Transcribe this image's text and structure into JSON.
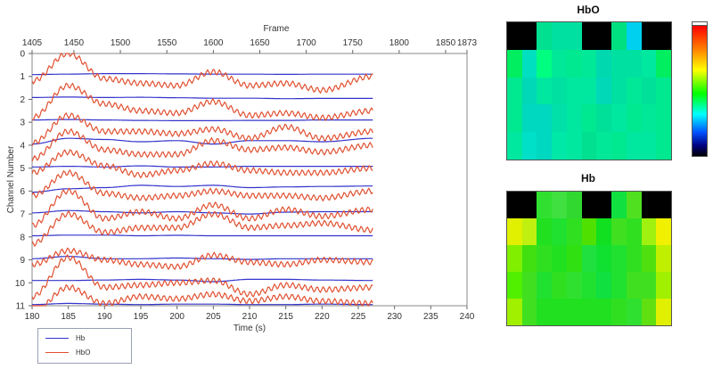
{
  "chart_data": {
    "type": "line",
    "top_axis": {
      "label": "Frame",
      "ticks": [
        "1405",
        "1450",
        "1500",
        "1550",
        "1600",
        "1650",
        "1700",
        "1750",
        "1800",
        "1850",
        "1873"
      ],
      "range": [
        1405,
        1873
      ]
    },
    "x_axis": {
      "label": "Time (s)",
      "ticks": [
        180,
        185,
        190,
        195,
        200,
        205,
        210,
        215,
        220,
        225,
        230,
        235,
        240
      ],
      "range": [
        180,
        240
      ]
    },
    "y_axis": {
      "label": "Channel Number",
      "ticks": [
        0,
        1,
        2,
        3,
        4,
        5,
        6,
        7,
        8,
        9,
        10,
        11
      ],
      "range": [
        0,
        11
      ]
    },
    "grid": false,
    "legend_position": "bottom-left",
    "data_end_time": 227,
    "series": [
      {
        "name": "Hb",
        "color": "#3333cc",
        "channels": [
          {
            "channel": 1,
            "values": [
              0.92,
              0.9,
              0.88,
              0.88,
              0.89,
              0.9,
              0.9,
              0.91,
              0.9,
              0.9
            ]
          },
          {
            "channel": 2,
            "values": [
              1.92,
              1.9,
              1.92,
              1.91,
              1.93,
              1.95,
              1.95,
              1.97,
              1.96,
              1.96
            ]
          },
          {
            "channel": 3,
            "values": [
              2.9,
              2.88,
              2.9,
              2.92,
              2.93,
              2.93,
              2.92,
              2.92,
              2.9,
              2.9
            ]
          },
          {
            "channel": 4,
            "values": [
              3.95,
              3.7,
              3.75,
              3.85,
              3.8,
              3.95,
              3.8,
              3.8,
              3.85,
              3.7
            ]
          },
          {
            "channel": 5,
            "values": [
              4.95,
              4.92,
              4.95,
              4.9,
              4.95,
              4.95,
              4.92,
              4.92,
              4.92,
              4.92
            ]
          },
          {
            "channel": 6,
            "values": [
              6.05,
              5.9,
              5.85,
              5.75,
              5.8,
              5.75,
              5.85,
              5.82,
              5.8,
              5.78
            ]
          },
          {
            "channel": 7,
            "values": [
              6.95,
              6.85,
              6.9,
              6.95,
              6.9,
              6.95,
              7.0,
              6.92,
              6.9,
              6.9
            ]
          },
          {
            "channel": 8,
            "values": [
              7.95,
              7.92,
              7.92,
              7.95,
              7.93,
              7.95,
              7.95,
              7.95,
              7.95,
              7.95
            ]
          },
          {
            "channel": 9,
            "values": [
              8.95,
              8.85,
              8.95,
              8.95,
              8.92,
              8.95,
              8.98,
              8.95,
              8.95,
              8.95
            ]
          },
          {
            "channel": 10,
            "values": [
              9.9,
              9.9,
              9.88,
              9.85,
              9.88,
              9.95,
              9.85,
              9.85,
              9.88,
              9.9
            ]
          },
          {
            "channel": 11,
            "values": [
              10.95,
              10.9,
              10.93,
              10.95,
              10.93,
              10.93,
              10.95,
              10.95,
              10.93,
              10.95
            ]
          }
        ]
      },
      {
        "name": "HbO",
        "color": "#e05030",
        "channels": [
          {
            "channel": 1,
            "values": [
              1.2,
              0.0,
              1.1,
              1.3,
              1.4,
              0.8,
              1.4,
              1.3,
              1.6,
              1.0
            ]
          },
          {
            "channel": 2,
            "values": [
              2.8,
              1.4,
              2.2,
              2.5,
              2.6,
              2.1,
              2.7,
              2.6,
              2.8,
              2.5
            ]
          },
          {
            "channel": 3,
            "values": [
              3.9,
              2.7,
              3.4,
              3.4,
              3.5,
              3.3,
              3.7,
              3.2,
              3.7,
              3.4
            ]
          },
          {
            "channel": 4,
            "values": [
              4.6,
              3.4,
              4.2,
              4.4,
              4.4,
              3.8,
              4.2,
              4.1,
              4.3,
              4.0
            ]
          },
          {
            "channel": 5,
            "values": [
              5.2,
              4.3,
              4.9,
              5.3,
              5.1,
              4.8,
              5.1,
              5.2,
              5.2,
              5.0
            ]
          },
          {
            "channel": 6,
            "values": [
              6.2,
              5.2,
              6.1,
              6.3,
              6.2,
              6.0,
              6.2,
              6.2,
              6.3,
              6.0
            ]
          },
          {
            "channel": 7,
            "values": [
              7.5,
              6.0,
              7.2,
              6.9,
              7.2,
              6.6,
              7.2,
              6.8,
              7.1,
              6.8
            ]
          },
          {
            "channel": 8,
            "values": [
              8.3,
              7.0,
              7.8,
              7.6,
              7.6,
              7.0,
              7.6,
              7.5,
              7.4,
              7.7
            ]
          },
          {
            "channel": 9,
            "values": [
              9.2,
              8.6,
              9.0,
              9.2,
              9.3,
              8.8,
              9.1,
              9.2,
              9.0,
              9.1
            ]
          },
          {
            "channel": 10,
            "values": [
              10.6,
              8.9,
              10.2,
              10.1,
              10.0,
              9.9,
              10.5,
              10.1,
              10.3,
              10.2
            ]
          },
          {
            "channel": 11,
            "values": [
              11.3,
              10.2,
              10.9,
              10.6,
              10.7,
              10.5,
              10.8,
              10.6,
              10.8,
              10.9
            ]
          }
        ]
      }
    ],
    "sample_times": [
      180,
      185,
      190,
      195,
      200,
      205,
      210,
      215,
      220,
      227
    ],
    "heatmaps": [
      {
        "title": "HbO",
        "cells": [
          [
            "#000000",
            "#000000",
            "#00e090",
            "#00e0a0",
            "#00e0a0",
            "#000000",
            "#000000",
            "#00e080",
            "#00d0f0",
            "#000000",
            "#000000"
          ],
          [
            "#00ee60",
            "#00e0c0",
            "#00ff80",
            "#00e898",
            "#00e890",
            "#00e898",
            "#00d8b0",
            "#00e0a0",
            "#00e0a0",
            "#00e8a0",
            "#00ee60"
          ],
          [
            "#00e890",
            "#00d8b8",
            "#00e8a0",
            "#00e0a0",
            "#00e8a0",
            "#00e8a0",
            "#00d8b8",
            "#00e0a0",
            "#00e898",
            "#00e098",
            "#00e890"
          ],
          [
            "#00e890",
            "#00d8c0",
            "#00d8c0",
            "#00e0a8",
            "#00e8a0",
            "#00e890",
            "#00e098",
            "#00e8a0",
            "#00e890",
            "#00e898",
            "#00e890"
          ],
          [
            "#00e8a0",
            "#00e0c8",
            "#00d8c0",
            "#00e8a8",
            "#00e8a0",
            "#00e090",
            "#00e898",
            "#00e890",
            "#00e8a0",
            "#00e8a0",
            "#00e890"
          ]
        ]
      },
      {
        "title": "Hb",
        "cells": [
          [
            "#000000",
            "#000000",
            "#30e030",
            "#40e040",
            "#30d830",
            "#000000",
            "#000000",
            "#10e040",
            "#50e020",
            "#000000",
            "#000000"
          ],
          [
            "#e0f000",
            "#c0f010",
            "#20e020",
            "#20e030",
            "#30e020",
            "#50e000",
            "#10e020",
            "#40e020",
            "#30e020",
            "#a0f010",
            "#f0f000"
          ],
          [
            "#80f000",
            "#40e010",
            "#30e020",
            "#20e020",
            "#30e010",
            "#20e040",
            "#10e030",
            "#20e030",
            "#30e020",
            "#50e010",
            "#c0f000"
          ],
          [
            "#50f000",
            "#40e020",
            "#20e030",
            "#30e020",
            "#30e030",
            "#20e030",
            "#10e040",
            "#20e030",
            "#40e020",
            "#40e020",
            "#a0f000"
          ],
          [
            "#a0f000",
            "#40e020",
            "#20e020",
            "#20e020",
            "#20e020",
            "#20e020",
            "#20e020",
            "#30e020",
            "#30e030",
            "#60e010",
            "#e0f000"
          ]
        ]
      }
    ]
  }
}
